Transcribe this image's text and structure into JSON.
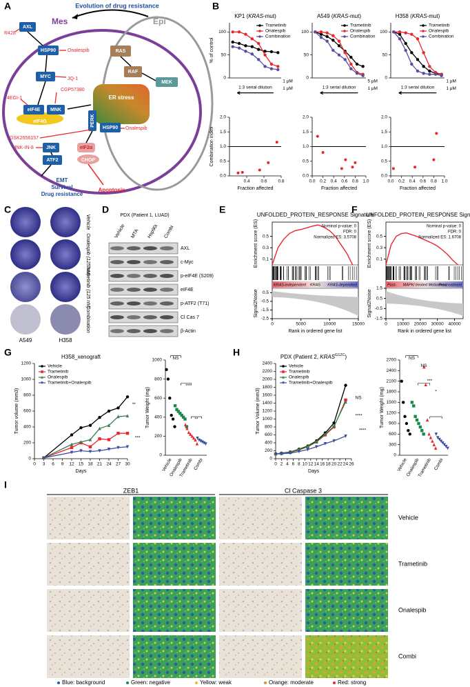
{
  "panel_labels": [
    "A",
    "B",
    "C",
    "D",
    "E",
    "F",
    "G",
    "H",
    "I"
  ],
  "panel_a": {
    "title": "Evolution of drug resistance",
    "mes": "Mes",
    "epi": "Epi",
    "axl": "AXL",
    "r428": "R428",
    "hsp90_top": "HSP90",
    "onalespib_top": "Onalespib",
    "myc": "MYC",
    "jq1": "JQ-1",
    "egi": "4EGI-1",
    "cgp": "CGP57380",
    "eif4e": "eIF4E",
    "mnk": "MNK",
    "eif4g": "eIF4G",
    "er_stress": "ER stress",
    "perk": "PERK",
    "hsp90_er": "HSP90",
    "onalespib_er": "Onalespib",
    "gsk": "GSK2656157",
    "jnkin": "JNK-IN-8",
    "jnk": "JNK",
    "eif2a": "eIF2α",
    "atf2": "ATF2",
    "chop": "CHOP",
    "emt": "EMT",
    "survival": "Survival",
    "drug_res": "Drug resistance",
    "apoptosis": "Apoptosis",
    "ras": "RAS",
    "raf": "RAF",
    "mek": "MEK"
  },
  "panel_c": {
    "treatments": [
      "Vehicle",
      "Onalespib (125 nM)",
      "Trametinib (125 nM)",
      "Combination"
    ],
    "cell_lines": [
      "A549",
      "H358"
    ]
  },
  "panel_d": {
    "title": "PDX (Patient 1, LUAD)",
    "columns": [
      "Vehicle",
      "MTA",
      "Hsp90i",
      "Combi"
    ],
    "rows": [
      "AXL",
      "c-Myc",
      "p-eIF4E (S209)",
      "eIF4E",
      "p-ATF2 (T71)",
      "Cl Cas 7",
      "β-Actin"
    ]
  },
  "panel_i": {
    "columns": [
      "ZEB1",
      "Cl Caspase 3"
    ],
    "rows": [
      "Vehicle",
      "Trametinib",
      "Onalespib",
      "Combi"
    ],
    "legend": [
      "Blue: background",
      "Green: negative",
      "Yellow: weak",
      "Orange: moderate",
      "Red: strong"
    ]
  },
  "chart_data": [
    {
      "type": "line",
      "title": [
        "KP1 (",
        "KRAS",
        "-mut)"
      ],
      "ylabel": "% of control",
      "categories": [
        null,
        null,
        null,
        null,
        null,
        null,
        null,
        null
      ],
      "ylim": [
        0,
        120
      ],
      "yticks": [
        0,
        50,
        100
      ],
      "legend": "upper right",
      "annotations": [
        "1:3 serial dilution",
        "1 μM",
        "1 μM"
      ],
      "series": [
        {
          "name": "Trametinib",
          "color": "#000000",
          "values": [
            78,
            75,
            70,
            68,
            62,
            58,
            57,
            55
          ]
        },
        {
          "name": "Onalespib",
          "color": "#e8262b",
          "values": [
            100,
            100,
            95,
            85,
            75,
            50,
            30,
            25
          ]
        },
        {
          "name": "Combination",
          "color": "#5b4b9f",
          "values": [
            68,
            65,
            58,
            52,
            40,
            25,
            20,
            18
          ]
        }
      ]
    },
    {
      "type": "line",
      "title": [
        "A549 (",
        "KRAS",
        "-mut)"
      ],
      "categories": [
        null,
        null,
        null,
        null,
        null,
        null,
        null,
        null,
        null
      ],
      "ylim": [
        0,
        120
      ],
      "yticks": [
        0,
        50,
        100
      ],
      "legend": "upper right",
      "annotations": [
        "1:3 serial dilution",
        "5 μM",
        "1 μM"
      ],
      "series": [
        {
          "name": "Trametinib",
          "color": "#000000",
          "values": [
            100,
            95,
            90,
            82,
            70,
            58,
            45,
            30,
            25
          ]
        },
        {
          "name": "Onalespib",
          "color": "#e8262b",
          "values": [
            100,
            100,
            98,
            92,
            80,
            55,
            30,
            12,
            8
          ]
        },
        {
          "name": "Combination",
          "color": "#5b4b9f",
          "values": [
            100,
            88,
            80,
            60,
            50,
            40,
            20,
            10,
            5
          ]
        }
      ]
    },
    {
      "type": "line",
      "title": [
        "H358 (",
        "KRAS",
        "-mut)"
      ],
      "categories": [
        null,
        null,
        null,
        null,
        null,
        null,
        null,
        null,
        null
      ],
      "ylim": [
        0,
        120
      ],
      "yticks": [
        0,
        50,
        100
      ],
      "legend": "upper right",
      "annotations": [
        "1:3 serial dilution",
        "1 μM",
        "1 μM"
      ],
      "series": [
        {
          "name": "Trametinib",
          "color": "#000000",
          "values": [
            100,
            95,
            75,
            55,
            40,
            25,
            15,
            10,
            8
          ]
        },
        {
          "name": "Onalespib",
          "color": "#e8262b",
          "values": [
            100,
            100,
            98,
            95,
            85,
            55,
            25,
            12,
            8
          ]
        },
        {
          "name": "Combination",
          "color": "#5b4b9f",
          "values": [
            100,
            85,
            60,
            30,
            15,
            10,
            8,
            8,
            5
          ]
        }
      ]
    },
    {
      "type": "scatter",
      "ylabel": "Combination index",
      "xlabel": "Fraction affected",
      "color": "#e8262b",
      "ref_line": 1,
      "xlim": [
        0.2,
        0.8
      ],
      "xticks": [
        0.4,
        0.6,
        0.8
      ],
      "ylim": [
        0,
        2
      ],
      "yticks": [
        {
          "value": 0,
          "label": "0.0"
        },
        {
          "value": 0.5,
          "label": "0.5"
        },
        {
          "value": 1,
          "label": "1.0"
        },
        {
          "value": 1.5,
          "label": "1.5"
        },
        {
          "value": 2,
          "label": "2.0"
        }
      ],
      "x": [
        0.3,
        0.35,
        0.55,
        0.65,
        0.75
      ],
      "y": [
        0.1,
        0.12,
        0.2,
        0.45,
        1.15
      ]
    },
    {
      "type": "scatter",
      "xlabel": "Fraction affected",
      "color": "#e8262b",
      "ref_line": 1,
      "xlim": [
        0,
        1
      ],
      "xticks": [
        {
          "value": 0,
          "label": "0.0"
        },
        0.2,
        0.4,
        0.6,
        0.8,
        {
          "value": 1,
          "label": "1.0"
        }
      ],
      "ylim": [
        0,
        2
      ],
      "yticks": [
        {
          "value": 0,
          "label": "0.0"
        },
        {
          "value": 0.5,
          "label": "0.5"
        },
        {
          "value": 1,
          "label": "1.0"
        },
        {
          "value": 1.5,
          "label": "1.5"
        },
        {
          "value": 2,
          "label": "2.0"
        }
      ],
      "x": [
        0.1,
        0.2,
        0.55,
        0.62,
        0.75,
        0.8
      ],
      "y": [
        1.35,
        0.8,
        0.25,
        0.55,
        0.3,
        0.45
      ]
    },
    {
      "type": "scatter",
      "xlabel": "Fraction affected",
      "color": "#e8262b",
      "ref_line": 1,
      "xlim": [
        0,
        1
      ],
      "xticks": [
        {
          "value": 0,
          "label": "0.0"
        },
        0.2,
        0.4,
        0.6,
        0.8,
        {
          "value": 1,
          "label": "1.0"
        }
      ],
      "ylim": [
        0,
        2
      ],
      "yticks": [
        {
          "value": 0,
          "label": "0.0"
        },
        {
          "value": 0.5,
          "label": "0.5"
        },
        {
          "value": 1,
          "label": "1.0"
        },
        {
          "value": 1.5,
          "label": "1.5"
        },
        {
          "value": 2,
          "label": "2.0"
        }
      ],
      "x": [
        0.05,
        0.45,
        0.8,
        0.85
      ],
      "y": [
        0.25,
        0.3,
        0.55,
        1.45
      ]
    },
    {
      "type": "gsea",
      "title": "UNFOLDED_PROTEIN_RESPONSE Signature",
      "ylabel": "Enrichment score (ES)",
      "signal_label": "Signal2Noise",
      "xlabel": "Rank in ordered gene list",
      "color": "#e8262b",
      "stats": [
        "Nominal p-value: 0",
        "FDR: 0",
        "Normalized ES: 3.5708"
      ],
      "phenotypes": [
        "KRAS-independent",
        "KRAS",
        "KRAS-dependent"
      ],
      "x": [
        0,
        1000,
        2000,
        3000,
        4000,
        5000,
        6000,
        7000,
        8000,
        9000,
        10000,
        11000,
        12000,
        13000,
        14000
      ],
      "es": [
        0,
        0.3,
        0.45,
        0.55,
        0.6,
        0.62,
        0.65,
        0.68,
        0.7,
        0.66,
        0.6,
        0.5,
        0.35,
        0.2,
        0
      ],
      "xlim": [
        0,
        15000
      ],
      "xticks": [
        0,
        5000,
        10000,
        15000
      ],
      "ylim": [
        0,
        0.75
      ],
      "yticks": [
        0.1,
        0.3,
        0.5
      ],
      "signal_ylim": [
        -2.5,
        1
      ],
      "signal_yticks": [
        0.5,
        -0.5,
        -1.5,
        -2.5
      ]
    },
    {
      "type": "gsea",
      "title": "UNFOLDED_PROTEIN_RESPONSE Signature",
      "ylabel": "Enrichment score (ES)",
      "signal_label": "Signal2Noise",
      "xlabel": "Rank in ordered gene list",
      "color": "#e8262b",
      "stats": [
        "Nominal p-value: 0",
        "FDR: 0",
        "Normalized ES: 1.6708"
      ],
      "phenotypes": [
        "Post-",
        "MAPKi treated Melanoma",
        "Pre-treatment"
      ],
      "x": [
        0,
        3000,
        6000,
        9000,
        12000,
        15000,
        18000,
        21000,
        24000,
        27000,
        30000,
        33000,
        36000,
        39000,
        42000
      ],
      "es": [
        0,
        0.35,
        0.5,
        0.55,
        0.56,
        0.53,
        0.5,
        0.46,
        0.42,
        0.38,
        0.33,
        0.26,
        0.18,
        0.08,
        0
      ],
      "xlim": [
        0,
        45000
      ],
      "xticks": [
        0,
        10000,
        20000,
        30000,
        40000
      ],
      "ylim": [
        0,
        0.75
      ],
      "yticks": [
        0.1,
        0.3,
        0.5
      ],
      "signal_ylim": [
        -1.5,
        1.5
      ],
      "signal_yticks": [
        1.5,
        0.5,
        -0.5,
        -1.5
      ]
    },
    {
      "type": "line",
      "title": "H358_xenograft",
      "ylabel": "Tumor volume (mm3)",
      "xlabel": "Days",
      "legend": "upper left",
      "annotations": [
        "**",
        "***"
      ],
      "x": [
        3,
        12,
        15,
        18,
        21,
        24,
        27,
        30
      ],
      "xlim": [
        0,
        30
      ],
      "xticks": [
        0,
        3,
        6,
        9,
        12,
        15,
        18,
        21,
        24,
        27,
        30
      ],
      "ylim": [
        0,
        1200
      ],
      "yticks": [
        0,
        200,
        400,
        600,
        800,
        1000,
        1200
      ],
      "series": [
        {
          "name": "Vehicle",
          "color": "#000000",
          "marker": "circle",
          "values": [
            10,
            300,
            390,
            420,
            520,
            600,
            640,
            780
          ]
        },
        {
          "name": "Trametinib",
          "color": "#e8262b",
          "marker": "square",
          "values": [
            10,
            140,
            200,
            150,
            250,
            240,
            320,
            320
          ]
        },
        {
          "name": "Onalespib",
          "color": "#3c7a4e",
          "marker": "triangle",
          "values": [
            10,
            180,
            210,
            240,
            380,
            420,
            530,
            540
          ]
        },
        {
          "name": "Trametinib+Onalespib",
          "color": "#3b4fa0",
          "marker": "triangle-down",
          "values": [
            10,
            80,
            100,
            90,
            100,
            120,
            140,
            150
          ]
        }
      ]
    },
    {
      "type": "dot",
      "ylabel": "Tumor Weight (mg)",
      "annotations": [
        "NS",
        "***",
        "**"
      ],
      "categories": [
        "Vehicle",
        "Onalespib",
        "Trametinib",
        "Combi"
      ],
      "colors": [
        "#000000",
        "#1a8a4a",
        "#e8262b",
        "#3b4fa0"
      ],
      "markers": [
        "circle",
        "square",
        "triangle",
        "triangle-down"
      ],
      "ylim": [
        0,
        1000
      ],
      "yticks": [
        0,
        200,
        400,
        600,
        800,
        1000
      ],
      "values": [
        [
          900,
          800,
          600,
          420,
          380,
          300
        ],
        [
          520,
          480,
          460,
          440,
          420,
          400,
          380,
          300
        ],
        [
          320,
          280,
          240,
          220,
          200,
          180,
          160,
          120
        ],
        [
          180,
          160,
          150,
          140,
          130,
          120
        ]
      ]
    },
    {
      "type": "line",
      "title": [
        "PDX (Patient 2, ",
        "KRAS",
        "G12C",
        ")"
      ],
      "ylabel": "Tumor Volume (mm3)",
      "xlabel": "Days",
      "legend": "upper left",
      "annotations": [
        "NS",
        "****",
        "****"
      ],
      "x": [
        0,
        2,
        5,
        8,
        11,
        14,
        17,
        20,
        24
      ],
      "xlim": [
        0,
        26
      ],
      "xticks": [
        0,
        2,
        4,
        6,
        8,
        10,
        12,
        14,
        16,
        18,
        20,
        22,
        24,
        26
      ],
      "ylim": [
        0,
        2400
      ],
      "yticks": [
        0,
        200,
        400,
        600,
        800,
        1000,
        1200,
        1400,
        1600,
        1800,
        2000,
        2200,
        2400
      ],
      "series": [
        {
          "name": "Vehicle",
          "color": "#000000",
          "marker": "circle",
          "values": [
            120,
            140,
            170,
            240,
            320,
            450,
            650,
            900,
            1850
          ]
        },
        {
          "name": "Trametinib",
          "color": "#e8262b",
          "marker": "square",
          "values": [
            120,
            130,
            160,
            220,
            300,
            420,
            600,
            800,
            1480
          ]
        },
        {
          "name": "Onalespib",
          "color": "#1a8a4a",
          "marker": "triangle",
          "values": [
            120,
            135,
            165,
            230,
            310,
            430,
            620,
            820,
            1430
          ]
        },
        {
          "name": "Trametinib+Onalespib",
          "color": "#3b4fa0",
          "marker": "triangle-down",
          "values": [
            120,
            125,
            140,
            180,
            230,
            300,
            380,
            450,
            570
          ]
        }
      ]
    },
    {
      "type": "dot",
      "ylabel": "Tumor Weight (mg)",
      "annotations": [
        "NS",
        "NS",
        "***",
        "*"
      ],
      "categories": [
        "Vehicle",
        "Onalespib",
        "Trametinib",
        "Combi"
      ],
      "colors": [
        "#000000",
        "#1a8a4a",
        "#e8262b",
        "#3b4fa0"
      ],
      "markers": [
        "circle",
        "square",
        "triangle",
        "triangle-down"
      ],
      "ylim": [
        0,
        2700
      ],
      "yticks": [
        0,
        300,
        600,
        900,
        1200,
        1500,
        1800,
        2100,
        2400,
        2700
      ],
      "values": [
        [
          2100,
          1500,
          1100,
          900,
          700,
          600
        ],
        [
          1500,
          1400,
          1100,
          1000,
          900,
          800,
          700,
          600
        ],
        [
          2500,
          2000,
          1000,
          600,
          500,
          400,
          300,
          200
        ],
        [
          600,
          500,
          450,
          400,
          350,
          300,
          250,
          200
        ]
      ]
    }
  ]
}
